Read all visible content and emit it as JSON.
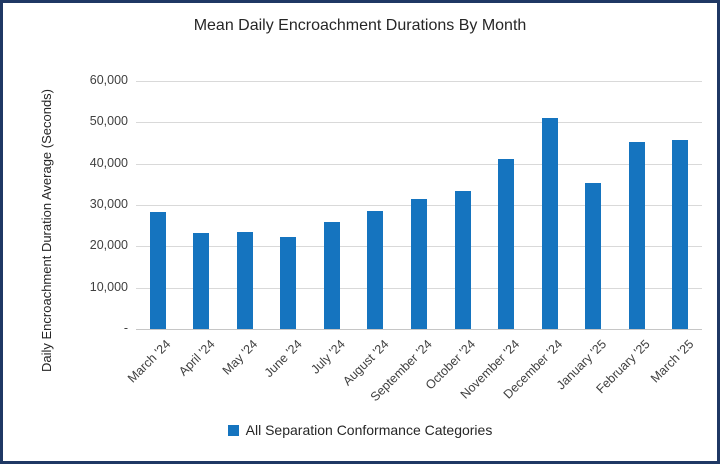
{
  "window": {
    "border_color": "#1f3864",
    "background": "#ffffff"
  },
  "chart_data": {
    "type": "bar",
    "title": "Mean Daily Encroachment Durations By Month",
    "ylabel": "Daily Encroachment Duration Average (Seconds)",
    "xlabel": "",
    "categories": [
      "March '24",
      "April '24",
      "May '24",
      "June '24",
      "July '24",
      "August '24",
      "September '24",
      "October '24",
      "November '24",
      "December '24",
      "January '25",
      "February '25",
      "March '25"
    ],
    "series": [
      {
        "name": "All Separation Conformance Categories",
        "values": [
          28300,
          23300,
          23400,
          22300,
          26000,
          28500,
          31400,
          33500,
          41100,
          51000,
          35400,
          45300,
          45800
        ]
      }
    ],
    "ylim": [
      0,
      60000
    ],
    "ytick_interval": 10000,
    "ytick_labels": [
      "-",
      "10,000",
      "20,000",
      "30,000",
      "40,000",
      "50,000",
      "60,000"
    ],
    "x_tick_rotation_deg": 45,
    "grid": true,
    "gridline_color": "#d9d9d9",
    "bar_color": "#1574bf",
    "legend_position": "bottom"
  },
  "legend": {
    "label": "All Separation Conformance Categories"
  }
}
